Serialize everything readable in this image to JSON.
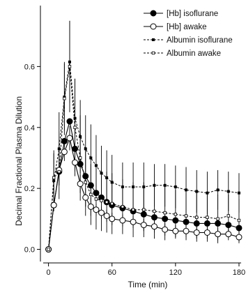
{
  "chart_data": {
    "type": "line",
    "xlabel": "Time (min)",
    "ylabel": "Decimal Fractional Plasma Dilution",
    "xlim": [
      -5,
      182
    ],
    "ylim": [
      -0.04,
      0.8
    ],
    "xticks": [
      0,
      60,
      120,
      180
    ],
    "yticks": [
      0.0,
      0.2,
      0.4,
      0.6
    ],
    "xtick_labels": [
      "0",
      "60",
      "120",
      "180"
    ],
    "ytick_labels": [
      "0.0",
      "0.2",
      "0.4",
      "0.6"
    ],
    "grid": false,
    "legend_position": "top-right",
    "series": [
      {
        "name": "[Hb] isoflurane",
        "marker": "filled-circle",
        "line": "solid",
        "x": [
          0,
          5,
          10,
          15,
          20,
          25,
          30,
          35,
          40,
          45,
          50,
          55,
          60,
          70,
          80,
          90,
          100,
          110,
          120,
          130,
          140,
          150,
          160,
          170,
          180
        ],
        "y": [
          0.0,
          0.145,
          0.255,
          0.355,
          0.42,
          0.33,
          0.28,
          0.24,
          0.21,
          0.185,
          0.17,
          0.155,
          0.145,
          0.135,
          0.125,
          0.115,
          0.105,
          0.1,
          0.095,
          0.09,
          0.085,
          0.085,
          0.085,
          0.08,
          0.07
        ]
      },
      {
        "name": "[Hb] awake",
        "marker": "open-circle",
        "line": "solid",
        "x": [
          0,
          5,
          10,
          15,
          20,
          25,
          30,
          35,
          40,
          45,
          50,
          55,
          60,
          70,
          80,
          90,
          100,
          110,
          120,
          130,
          140,
          150,
          160,
          170,
          180
        ],
        "y": [
          0.0,
          0.145,
          0.26,
          0.32,
          0.365,
          0.285,
          0.215,
          0.17,
          0.14,
          0.13,
          0.12,
          0.11,
          0.1,
          0.095,
          0.09,
          0.08,
          0.075,
          0.065,
          0.06,
          0.06,
          0.055,
          0.055,
          0.05,
          0.05,
          0.04
        ],
        "error_bars": [
          0,
          0,
          0.02,
          0.03,
          0.04,
          0.03,
          0.03,
          0.03,
          0.03,
          0.02,
          0.02,
          0.02,
          0.02,
          0.02,
          0.02,
          0.02,
          0.02,
          0.02,
          0.02,
          0.02,
          0.02,
          0.02,
          0.02,
          0.02,
          0.02
        ]
      },
      {
        "name": "Albumin isoflurane",
        "marker": "filled-square",
        "line": "dashed",
        "x": [
          0,
          5,
          10,
          15,
          20,
          25,
          30,
          35,
          40,
          45,
          50,
          55,
          60,
          70,
          80,
          90,
          100,
          110,
          120,
          130,
          140,
          150,
          160,
          170,
          180
        ],
        "y": [
          0.0,
          0.225,
          0.33,
          0.5,
          0.615,
          0.43,
          0.37,
          0.33,
          0.3,
          0.275,
          0.25,
          0.235,
          0.22,
          0.205,
          0.205,
          0.205,
          0.21,
          0.21,
          0.205,
          0.195,
          0.19,
          0.185,
          0.195,
          0.19,
          0.185
        ],
        "error_bars": [
          0,
          0.1,
          0.12,
          0.11,
          0.135,
          0.13,
          0.12,
          0.11,
          0.11,
          0.1,
          0.09,
          0.09,
          0.09,
          0.08,
          0.08,
          0.08,
          0.07,
          0.07,
          0.07,
          0.075,
          0.07,
          0.07,
          0.065,
          0.065,
          0.065
        ]
      },
      {
        "name": "Albumin awake",
        "marker": "open-square",
        "line": "dashed",
        "x": [
          0,
          5,
          10,
          15,
          20,
          25,
          30,
          35,
          40,
          45,
          50,
          55,
          60,
          70,
          80,
          90,
          100,
          110,
          120,
          130,
          140,
          150,
          160,
          170,
          180
        ],
        "y": [
          0.0,
          0.235,
          0.255,
          0.495,
          0.6,
          0.4,
          0.3,
          0.22,
          0.18,
          0.165,
          0.16,
          0.155,
          0.15,
          0.14,
          0.13,
          0.13,
          0.125,
          0.12,
          0.115,
          0.11,
          0.105,
          0.105,
          0.1,
          0.11,
          0.095
        ],
        "error_bars": [
          0,
          0.08,
          0.09,
          0.12,
          0.15,
          0.16,
          0.14,
          0.11,
          0.1,
          0.1,
          0.1,
          0.1,
          0.1,
          0.09,
          0.09,
          0.09,
          0.09,
          0.09,
          0.08,
          0.08,
          0.08,
          0.08,
          0.08,
          0.07,
          0.07
        ]
      }
    ]
  }
}
